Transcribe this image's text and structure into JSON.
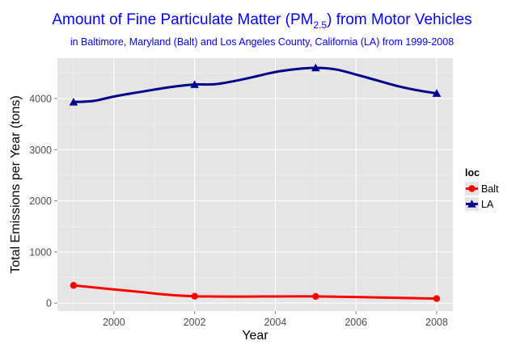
{
  "chart_data": {
    "type": "line",
    "title_main": "Amount of Fine Particulate Matter (PM",
    "title_sub": "2.5",
    "title_end": ") from Motor Vehicles",
    "subtitle": "in Baltimore, Maryland (Balt) and Los Angeles County, California (LA) from 1999-2008",
    "xlabel": "Year",
    "ylabel": "Total Emissions per Year (tons)",
    "x": [
      1999,
      2002,
      2005,
      2008
    ],
    "xticks": [
      2000,
      2002,
      2004,
      2006,
      2008
    ],
    "yticks": [
      0,
      1000,
      2000,
      3000,
      4000
    ],
    "xlim": [
      1998.6,
      2008.4
    ],
    "ylim": [
      -155,
      4790
    ],
    "grid": true,
    "legend_title": "loc",
    "legend_position": "right",
    "series": [
      {
        "name": "Balt",
        "color": "#ff0000",
        "marker": "circle",
        "values": [
          346.8,
          134.3,
          130.4,
          88.3
        ]
      },
      {
        "name": "LA",
        "color": "#00008b",
        "marker": "triangle",
        "values": [
          3931,
          4274,
          4601,
          4101
        ],
        "smooth": [
          [
            1999,
            3931
          ],
          [
            1999.5,
            3955
          ],
          [
            2000,
            4040
          ],
          [
            2000.5,
            4110
          ],
          [
            2001,
            4175
          ],
          [
            2001.5,
            4235
          ],
          [
            2002,
            4274
          ],
          [
            2002.5,
            4280
          ],
          [
            2003,
            4345
          ],
          [
            2003.5,
            4430
          ],
          [
            2004,
            4520
          ],
          [
            2004.5,
            4575
          ],
          [
            2005,
            4601
          ],
          [
            2005.5,
            4570
          ],
          [
            2006,
            4470
          ],
          [
            2006.5,
            4360
          ],
          [
            2007,
            4250
          ],
          [
            2007.5,
            4165
          ],
          [
            2008,
            4101
          ]
        ]
      }
    ]
  }
}
